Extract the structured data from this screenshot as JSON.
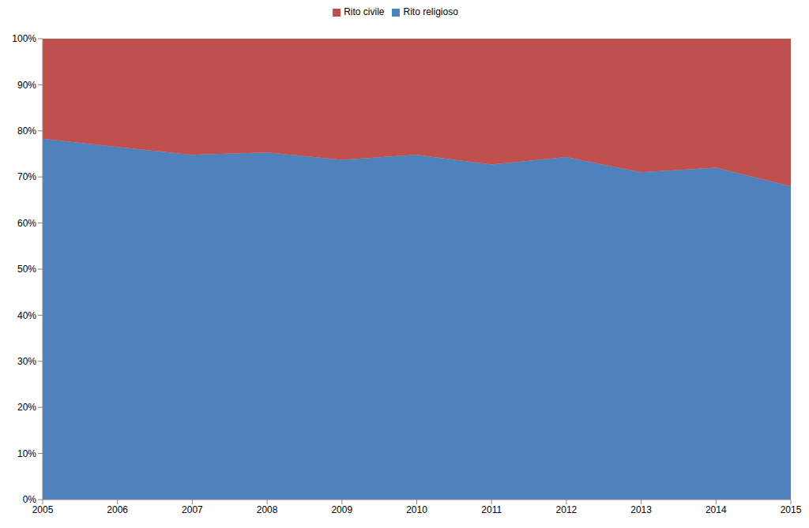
{
  "chart_data": {
    "type": "area",
    "stacked": true,
    "legend": "top",
    "grid": false,
    "categories": [
      "2005",
      "2006",
      "2007",
      "2008",
      "2009",
      "2010",
      "2011",
      "2012",
      "2013",
      "2014",
      "2015"
    ],
    "series": [
      {
        "name": "Rito religioso",
        "color": "#4f81bd",
        "values": [
          78.3,
          76.5,
          74.8,
          75.3,
          73.7,
          74.8,
          72.7,
          74.3,
          71.0,
          72.0,
          68.0
        ]
      },
      {
        "name": "Rito civile",
        "color": "#c0504d",
        "values": [
          21.7,
          23.5,
          25.2,
          24.7,
          26.3,
          25.2,
          27.3,
          25.7,
          29.0,
          28.0,
          32.0
        ]
      }
    ],
    "ylim": [
      0,
      100
    ],
    "yticks": [
      {
        "value": 0,
        "label": "0%"
      },
      {
        "value": 10,
        "label": "10%"
      },
      {
        "value": 20,
        "label": "20%"
      },
      {
        "value": 30,
        "label": "30%"
      },
      {
        "value": 40,
        "label": "40%"
      },
      {
        "value": 50,
        "label": "50%"
      },
      {
        "value": 60,
        "label": "60%"
      },
      {
        "value": 70,
        "label": "70%"
      },
      {
        "value": 80,
        "label": "80%"
      },
      {
        "value": 90,
        "label": "90%"
      },
      {
        "value": 100,
        "label": "100%"
      }
    ]
  }
}
